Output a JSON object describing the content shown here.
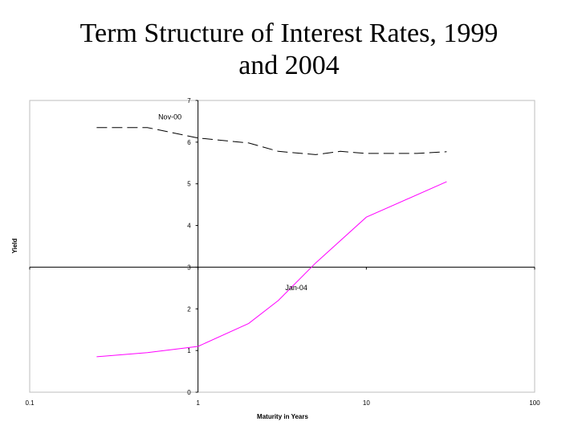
{
  "slide": {
    "title_line1": "Term Structure of Interest Rates, 1999",
    "title_line2": "and 2004"
  },
  "chart_data": {
    "type": "line",
    "title": "Term Structure of Interest Rates, 1999 and 2004",
    "xlabel": "Maturity in Years",
    "ylabel": "Yield",
    "xscale": "log",
    "xlim": [
      0.1,
      100
    ],
    "ylim": [
      0,
      7
    ],
    "x_ticks": [
      0.1,
      1,
      10,
      100
    ],
    "x_tick_labels": [
      "0.1",
      "1",
      "10",
      "100"
    ],
    "y_ticks": [
      0,
      1,
      2,
      3,
      4,
      5,
      6,
      7
    ],
    "y_tick_labels": [
      "0",
      "1",
      "2",
      "3",
      "4",
      "5",
      "6",
      "7"
    ],
    "axis_crossing": {
      "x": 1,
      "y": 3
    },
    "series": [
      {
        "name": "Nov-00",
        "color": "#000000",
        "style": "dashed",
        "x": [
          0.25,
          0.5,
          1,
          2,
          3,
          5,
          7,
          10,
          20,
          30
        ],
        "y": [
          6.35,
          6.35,
          6.1,
          5.98,
          5.78,
          5.7,
          5.78,
          5.73,
          5.73,
          5.77
        ]
      },
      {
        "name": "Jan-04",
        "color": "#ff00ff",
        "style": "solid",
        "x": [
          0.25,
          0.5,
          1,
          2,
          3,
          5,
          10,
          30
        ],
        "y": [
          0.85,
          0.95,
          1.1,
          1.65,
          2.2,
          3.1,
          4.2,
          5.05
        ]
      }
    ],
    "annotations": [
      {
        "text": "Nov-00",
        "x": 0.58,
        "y": 6.55
      },
      {
        "text": "Jan-04",
        "x": 3.3,
        "y": 2.45
      }
    ],
    "grid": false,
    "legend": "none"
  }
}
